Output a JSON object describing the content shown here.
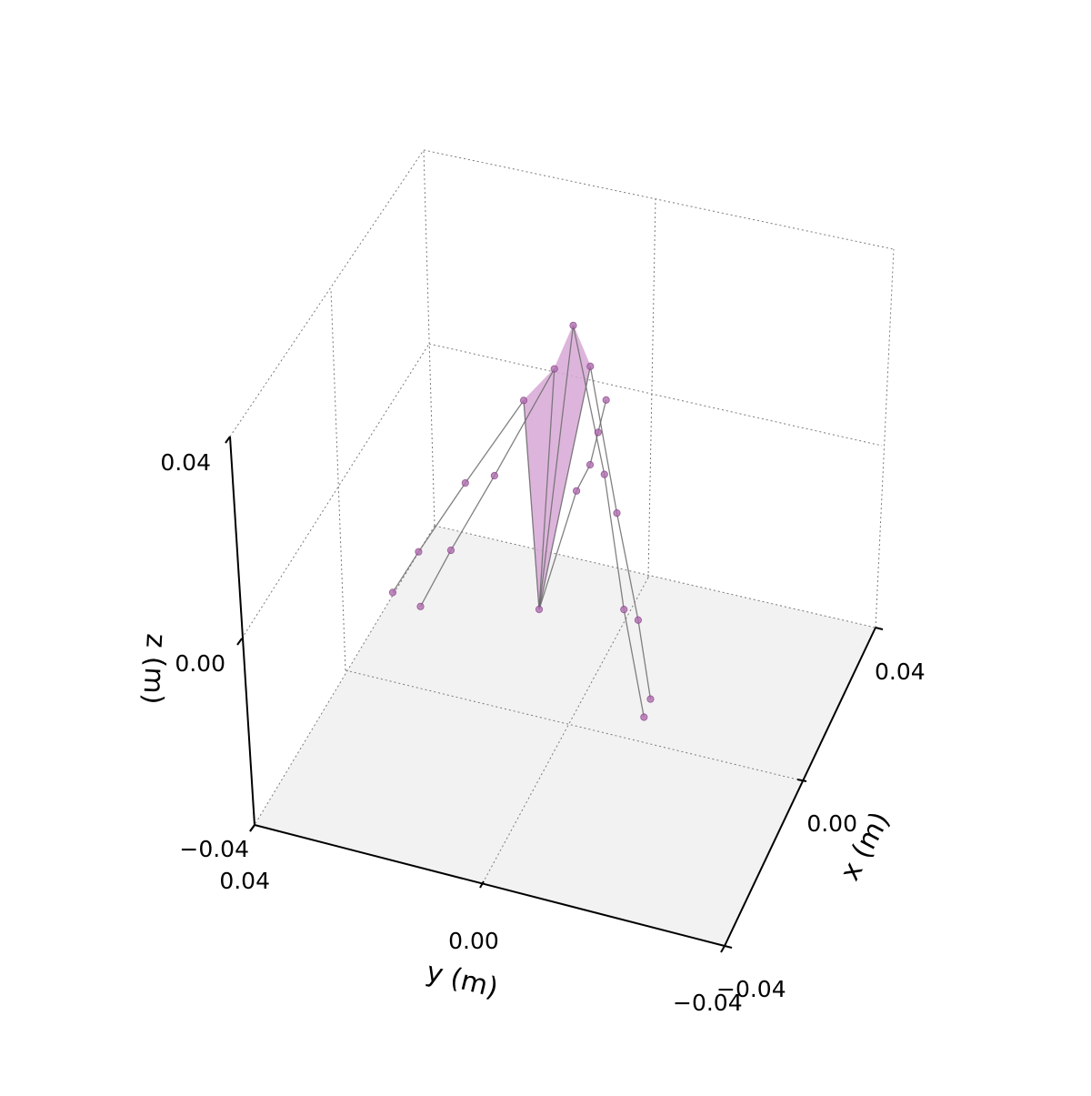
{
  "chart_data": {
    "type": "scatter",
    "subtype": "3d-hand-skeleton",
    "title": "",
    "xlabel": "x (m)",
    "ylabel": "y (m)",
    "zlabel": "z (m)",
    "xlim": [
      -0.05,
      0.05
    ],
    "ylim": [
      -0.05,
      0.05
    ],
    "zlim": [
      -0.05,
      0.05
    ],
    "x_ticks": [
      "-0.04",
      "0.00",
      "0.04"
    ],
    "y_ticks": [
      "0.04",
      "0.00",
      "-0.04"
    ],
    "z_ticks": [
      "-0.04",
      "0.00",
      "0.04"
    ],
    "grid": true,
    "floor_color": "#f2f2f2",
    "marker_color": "#b06fb0",
    "bone_color": "#6b6b6b",
    "palm_fill_color": "#d8a9d6",
    "palm_polygon_joints": [
      0,
      5,
      9,
      13,
      17
    ],
    "bones": [
      [
        0,
        1
      ],
      [
        1,
        2
      ],
      [
        2,
        3
      ],
      [
        3,
        4
      ],
      [
        0,
        5
      ],
      [
        5,
        6
      ],
      [
        6,
        7
      ],
      [
        7,
        8
      ],
      [
        0,
        9
      ],
      [
        9,
        10
      ],
      [
        10,
        11
      ],
      [
        11,
        12
      ],
      [
        0,
        13
      ],
      [
        13,
        14
      ],
      [
        14,
        15
      ],
      [
        15,
        16
      ],
      [
        0,
        17
      ],
      [
        17,
        18
      ],
      [
        18,
        19
      ],
      [
        19,
        20
      ]
    ],
    "joints": [
      {
        "x": 0.0,
        "y": 0.0,
        "z": 0.0
      },
      {
        "x": 0.0,
        "y": -0.005,
        "z": 0.013
      },
      {
        "x": 0.0,
        "y": -0.007,
        "z": 0.016
      },
      {
        "x": 0.0,
        "y": -0.008,
        "z": 0.0195
      },
      {
        "x": 0.0,
        "y": -0.009,
        "z": 0.023
      },
      {
        "x": 0.0,
        "y": -0.006,
        "z": 0.026
      },
      {
        "x": 0.0,
        "y": -0.012,
        "z": 0.0118
      },
      {
        "x": 0.0,
        "y": -0.0167,
        "z": 0.0015
      },
      {
        "x": 0.0,
        "y": -0.0196,
        "z": -0.0062
      },
      {
        "x": 0.0,
        "y": -0.0027,
        "z": 0.0297
      },
      {
        "x": 0.0,
        "y": -0.0095,
        "z": 0.0154
      },
      {
        "x": 0.0,
        "y": -0.0142,
        "z": 0.0022
      },
      {
        "x": 0.0,
        "y": -0.0187,
        "z": -0.0082
      },
      {
        "x": 0.0,
        "y": 0.0,
        "z": 0.0248
      },
      {
        "x": 0.0,
        "y": 0.0089,
        "z": 0.0124
      },
      {
        "x": 0.0,
        "y": 0.0154,
        "z": 0.0037
      },
      {
        "x": 0.0,
        "y": 0.0199,
        "z": -0.0028
      },
      {
        "x": 0.0,
        "y": 0.0048,
        "z": 0.0208
      },
      {
        "x": 0.0,
        "y": 0.0137,
        "z": 0.0109
      },
      {
        "x": 0.0,
        "y": 0.0208,
        "z": 0.0027
      },
      {
        "x": 0.0,
        "y": 0.0247,
        "z": -0.0021
      }
    ]
  }
}
